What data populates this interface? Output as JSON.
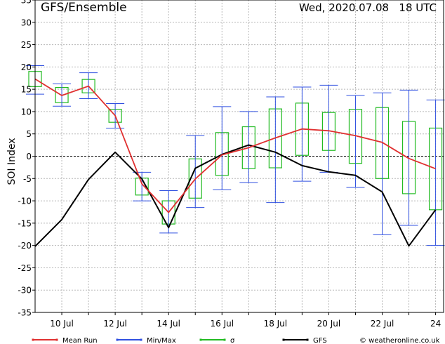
{
  "header": {
    "left_title": "GFS/Ensemble",
    "right_title": "Wed, 2020.07.08   18 UTC"
  },
  "chart_data": {
    "type": "line",
    "title": "GFS/Ensemble",
    "subtitle": "Wed, 2020.07.08   18 UTC",
    "xlabel": "",
    "ylabel": "SOI Index",
    "ylim": [
      -35,
      35
    ],
    "yticks": [
      35,
      30,
      25,
      20,
      15,
      10,
      5,
      0,
      -5,
      -10,
      -15,
      -20,
      -25,
      -30,
      -35
    ],
    "x_tick_labels": [
      "10 Jul",
      "12 Jul",
      "14 Jul",
      "16 Jul",
      "18 Jul",
      "20 Jul",
      "22 Jul",
      "24"
    ],
    "x_tick_days": [
      10,
      12,
      14,
      16,
      18,
      20,
      22,
      24
    ],
    "xlim": [
      9,
      24.3
    ],
    "zero_line": true,
    "grid": true,
    "series": [
      {
        "name": "Mean Run",
        "color": "#e03030",
        "x": [
          9,
          10,
          11,
          12,
          13,
          14,
          15,
          16,
          17,
          18,
          19,
          20,
          21,
          22,
          23,
          24
        ],
        "values": [
          17.3,
          13.6,
          15.7,
          9.1,
          -6.2,
          -12.6,
          -5.1,
          0.3,
          1.9,
          4.1,
          6.1,
          5.7,
          4.6,
          3.1,
          -0.5,
          -2.8
        ]
      },
      {
        "name": "GFS",
        "color": "#000000",
        "x": [
          9,
          10,
          11,
          12,
          13,
          14,
          15,
          16,
          17,
          18,
          19,
          20,
          21,
          22,
          23,
          24
        ],
        "values": [
          -20.2,
          -14.2,
          -5.2,
          0.9,
          -5.1,
          -16.0,
          -2.7,
          0.4,
          2.5,
          0.9,
          -2.1,
          -3.5,
          -4.3,
          -8.0,
          -20.1,
          -12.0
        ]
      },
      {
        "name": "Min/Max",
        "color": "#3050e0",
        "x": [
          9,
          10,
          11,
          12,
          13,
          14,
          15,
          16,
          17,
          18,
          19,
          20,
          21,
          22,
          23,
          24
        ],
        "min": [
          13.9,
          11.2,
          12.9,
          6.3,
          -10.0,
          -17.2,
          -11.5,
          -7.5,
          -5.9,
          -10.4,
          -5.6,
          -3.6,
          -7.0,
          -17.6,
          -15.5,
          -20.0
        ],
        "max": [
          20.3,
          16.2,
          18.7,
          11.8,
          -3.6,
          -7.7,
          4.6,
          11.1,
          10.0,
          13.3,
          15.5,
          15.9,
          13.6,
          14.2,
          14.8,
          12.6
        ]
      },
      {
        "name": "σ",
        "color": "#22bb22",
        "x": [
          9,
          10,
          11,
          12,
          13,
          14,
          15,
          16,
          17,
          18,
          19,
          20,
          21,
          22,
          23,
          24
        ],
        "low": [
          15.6,
          12.0,
          14.2,
          7.6,
          -8.7,
          -15.2,
          -9.4,
          -4.3,
          -2.8,
          -2.6,
          0.2,
          1.3,
          -1.6,
          -5.0,
          -8.4,
          -12.0
        ],
        "high": [
          19.0,
          15.4,
          17.2,
          10.5,
          -4.9,
          -10.0,
          -0.6,
          5.3,
          6.6,
          10.6,
          11.9,
          9.8,
          10.5,
          10.9,
          7.8,
          6.3
        ]
      }
    ],
    "legend": {
      "placement": "bottom",
      "items": [
        "Mean Run",
        "Min/Max",
        "σ",
        "GFS"
      ]
    },
    "credit": "© weatheronline.co.uk"
  }
}
